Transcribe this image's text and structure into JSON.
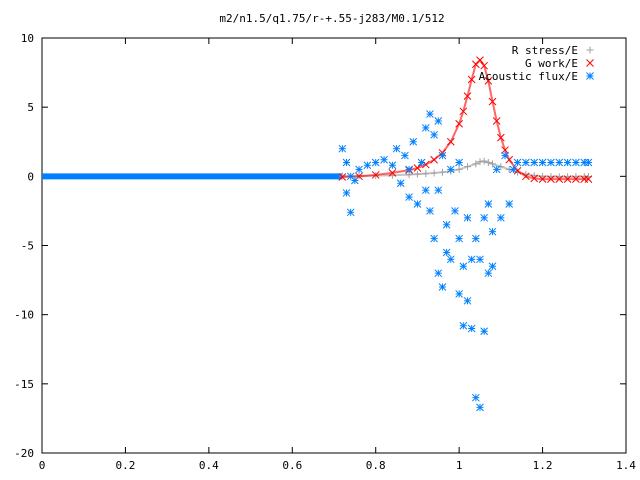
{
  "chart_data": {
    "type": "scatter",
    "title": "m2/n1.5/q1.75/r-+.55-j283/M0.1/512",
    "xlabel": "",
    "ylabel": "",
    "xlim": [
      0,
      1.4
    ],
    "ylim": [
      -20,
      10
    ],
    "x_ticks": [
      0,
      0.2,
      0.4,
      0.6,
      0.8,
      1,
      1.2,
      1.4
    ],
    "y_ticks": [
      -20,
      -15,
      -10,
      -5,
      0,
      5,
      10
    ],
    "grid": false,
    "legend_position": "top-right",
    "series": [
      {
        "name": "R stress/E",
        "marker": "plus",
        "color": "#a0a0a0",
        "x": [
          0.72,
          0.76,
          0.8,
          0.84,
          0.88,
          0.9,
          0.92,
          0.94,
          0.96,
          0.98,
          1.0,
          1.02,
          1.04,
          1.05,
          1.06,
          1.07,
          1.08,
          1.1,
          1.12,
          1.14,
          1.16,
          1.18,
          1.2,
          1.22,
          1.24,
          1.26,
          1.28,
          1.3,
          1.31
        ],
        "y": [
          0.02,
          0.03,
          0.05,
          0.08,
          0.12,
          0.16,
          0.2,
          0.24,
          0.3,
          0.38,
          0.5,
          0.7,
          0.9,
          1.05,
          1.1,
          1.0,
          0.9,
          0.7,
          0.5,
          0.3,
          0.15,
          0.05,
          0.0,
          -0.02,
          -0.03,
          -0.03,
          -0.02,
          -0.02,
          -0.02
        ]
      },
      {
        "name": "G work/E",
        "marker": "cross",
        "color": "#ff0000",
        "x": [
          0.72,
          0.76,
          0.8,
          0.84,
          0.88,
          0.9,
          0.92,
          0.94,
          0.96,
          0.98,
          1.0,
          1.01,
          1.02,
          1.03,
          1.04,
          1.05,
          1.06,
          1.07,
          1.08,
          1.09,
          1.1,
          1.11,
          1.12,
          1.14,
          1.16,
          1.18,
          1.2,
          1.22,
          1.24,
          1.26,
          1.28,
          1.3,
          1.31
        ],
        "y": [
          -0.05,
          0.0,
          0.1,
          0.25,
          0.45,
          0.6,
          0.85,
          1.2,
          1.7,
          2.5,
          3.8,
          4.7,
          5.8,
          7.0,
          8.1,
          8.4,
          8.0,
          6.9,
          5.4,
          4.0,
          2.8,
          1.9,
          1.2,
          0.4,
          0.0,
          -0.15,
          -0.2,
          -0.2,
          -0.2,
          -0.2,
          -0.2,
          -0.2,
          -0.2
        ]
      },
      {
        "name": "Acoustic flux/E",
        "marker": "star",
        "color": "#0080ff",
        "x": [
          0.72,
          0.73,
          0.73,
          0.74,
          0.74,
          0.75,
          0.76,
          0.78,
          0.8,
          0.82,
          0.84,
          0.85,
          0.86,
          0.87,
          0.88,
          0.88,
          0.89,
          0.9,
          0.91,
          0.92,
          0.92,
          0.93,
          0.93,
          0.94,
          0.94,
          0.95,
          0.95,
          0.95,
          0.96,
          0.96,
          0.97,
          0.97,
          0.98,
          0.98,
          0.99,
          1.0,
          1.0,
          1.0,
          1.01,
          1.01,
          1.02,
          1.02,
          1.03,
          1.03,
          1.04,
          1.04,
          1.05,
          1.05,
          1.06,
          1.06,
          1.07,
          1.07,
          1.08,
          1.08,
          1.09,
          1.1,
          1.11,
          1.12,
          1.13,
          1.14,
          1.16,
          1.18,
          1.2,
          1.22,
          1.24,
          1.26,
          1.28,
          1.3,
          1.31
        ],
        "y": [
          2.0,
          1.0,
          -1.2,
          -2.6,
          0.0,
          -0.3,
          0.5,
          0.8,
          1.0,
          1.2,
          0.8,
          2.0,
          -0.5,
          1.5,
          -1.5,
          0.5,
          2.5,
          -2.0,
          1.0,
          3.5,
          -1.0,
          4.5,
          -2.5,
          3.0,
          -4.5,
          4.0,
          -7.0,
          -1.0,
          -8.0,
          1.5,
          -3.5,
          -5.5,
          0.5,
          -6.0,
          -2.5,
          -4.5,
          -8.5,
          1.0,
          -6.5,
          -10.8,
          -3.0,
          -9.0,
          -6.0,
          -11.0,
          -16.0,
          -4.5,
          -16.7,
          -6.0,
          -3.0,
          -11.2,
          -7.0,
          -2.0,
          -4.0,
          -6.5,
          0.5,
          -3.0,
          1.5,
          -2.0,
          0.5,
          1.0,
          1.0,
          1.0,
          1.0,
          1.0,
          1.0,
          1.0,
          1.0,
          1.0,
          1.0
        ]
      }
    ]
  }
}
